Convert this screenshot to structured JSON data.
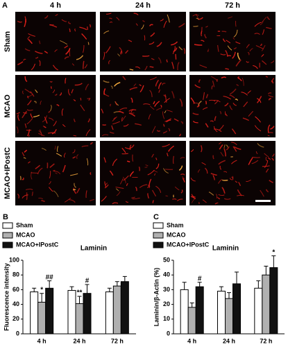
{
  "panel_a": {
    "label": "A",
    "columns": [
      "4 h",
      "24 h",
      "72 h"
    ],
    "rows": [
      "Sham",
      "MCAO",
      "MCAO+IPostC"
    ]
  },
  "chart_data": [
    {
      "type": "bar",
      "label": "B",
      "title": "Laminin",
      "y_label": "Fluorescence intensity",
      "categories": [
        "4 h",
        "24 h",
        "72 h"
      ],
      "series": [
        {
          "name": "Sham",
          "color": "#ffffff",
          "values": [
            57,
            59,
            57
          ],
          "errors": [
            5,
            5,
            5
          ],
          "significance": [
            null,
            null,
            null
          ]
        },
        {
          "name": "MCAO",
          "color": "#b0b0b0",
          "values": [
            43,
            41,
            65
          ],
          "errors": [
            12,
            10,
            6
          ],
          "significance": [
            "*",
            "**",
            null
          ]
        },
        {
          "name": "MCAO+IPostC",
          "color": "#111111",
          "values": [
            62,
            55,
            71
          ],
          "errors": [
            10,
            12,
            7
          ],
          "significance": [
            "##",
            "#",
            null
          ]
        }
      ],
      "ylim": [
        0,
        100
      ],
      "yticks": [
        0,
        20,
        40,
        60,
        80,
        100
      ]
    },
    {
      "type": "bar",
      "label": "C",
      "title": "Laminin",
      "y_label": "Laminin/β-Actin (%)",
      "categories": [
        "4 h",
        "24 h",
        "72 h"
      ],
      "series": [
        {
          "name": "Sham",
          "color": "#ffffff",
          "values": [
            30,
            29,
            31
          ],
          "errors": [
            5,
            3,
            5
          ],
          "significance": [
            null,
            null,
            null
          ]
        },
        {
          "name": "MCAO",
          "color": "#b0b0b0",
          "values": [
            18,
            24,
            40
          ],
          "errors": [
            3,
            4,
            6
          ],
          "significance": [
            null,
            null,
            null
          ]
        },
        {
          "name": "MCAO+IPostC",
          "color": "#111111",
          "values": [
            32,
            34,
            45
          ],
          "errors": [
            3,
            8,
            8
          ],
          "significance": [
            "#",
            null,
            "*"
          ]
        }
      ],
      "ylim": [
        0,
        50
      ],
      "yticks": [
        0,
        10,
        20,
        30,
        40,
        50
      ]
    }
  ]
}
